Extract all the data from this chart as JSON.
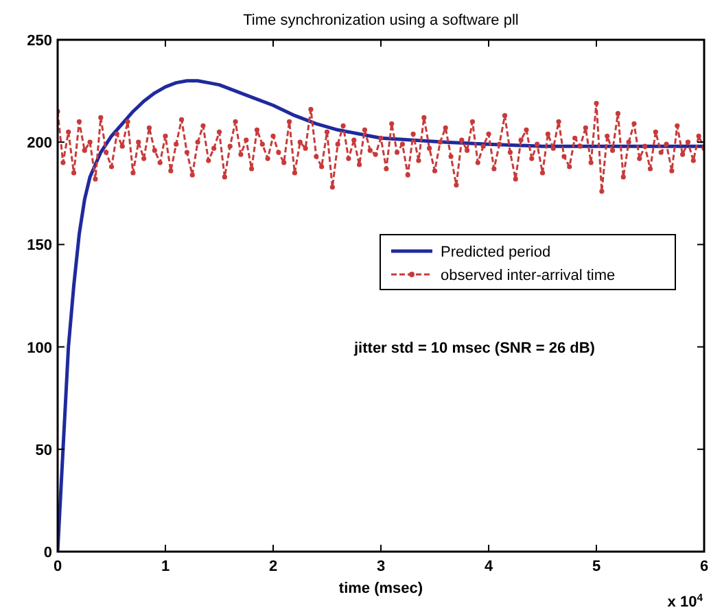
{
  "chart_data": {
    "type": "line",
    "title": "Time synchronization using a software pll",
    "xlabel": "time (msec)",
    "xlim": [
      0,
      6
    ],
    "ylim": [
      0,
      250
    ],
    "xticks": [
      0,
      1,
      2,
      3,
      4,
      5,
      6
    ],
    "yticks": [
      0,
      50,
      100,
      150,
      200,
      250
    ],
    "grid": false,
    "legend": "right",
    "annotations": [
      "jitter std = 10 msec (SNR = 26 dB)",
      "x 10$^{4}$"
    ],
    "series": [
      {
        "name": "Predicted period",
        "color": "#1f2a9c",
        "marker": "none",
        "line_style": "solid",
        "x": [
          0,
          0.02,
          0.05,
          0.08,
          0.1,
          0.15,
          0.2,
          0.25,
          0.3,
          0.4,
          0.5,
          0.6,
          0.7,
          0.8,
          0.9,
          1.0,
          1.1,
          1.2,
          1.3,
          1.4,
          1.5,
          1.6,
          1.8,
          2.0,
          2.2,
          2.4,
          2.6,
          2.8,
          3.0,
          3.3,
          3.6,
          4.0,
          4.5,
          5.0,
          5.5,
          6.0
        ],
        "values": [
          0,
          20,
          50,
          80,
          100,
          130,
          155,
          172,
          183,
          195,
          203,
          209,
          215,
          220,
          224,
          227,
          229,
          230,
          230,
          229,
          228,
          226,
          222,
          218,
          213,
          209,
          206,
          204,
          202,
          201,
          200,
          199,
          198,
          198,
          198,
          198
        ]
      },
      {
        "name": "observed inter-arrival time",
        "color": "#c83a3a",
        "marker": "circle",
        "line_style": "dashed",
        "x": [
          0,
          0.05,
          0.1,
          0.15,
          0.2,
          0.25,
          0.3,
          0.35,
          0.4,
          0.45,
          0.5,
          0.55,
          0.6,
          0.65,
          0.7,
          0.75,
          0.8,
          0.85,
          0.9,
          0.95,
          1.0,
          1.05,
          1.1,
          1.15,
          1.2,
          1.25,
          1.3,
          1.35,
          1.4,
          1.45,
          1.5,
          1.55,
          1.6,
          1.65,
          1.7,
          1.75,
          1.8,
          1.85,
          1.9,
          1.95,
          2.0,
          2.05,
          2.1,
          2.15,
          2.2,
          2.25,
          2.3,
          2.35,
          2.4,
          2.45,
          2.5,
          2.55,
          2.6,
          2.65,
          2.7,
          2.75,
          2.8,
          2.85,
          2.9,
          2.95,
          3.0,
          3.05,
          3.1,
          3.15,
          3.2,
          3.25,
          3.3,
          3.35,
          3.4,
          3.45,
          3.5,
          3.55,
          3.6,
          3.65,
          3.7,
          3.75,
          3.8,
          3.85,
          3.9,
          3.95,
          4.0,
          4.05,
          4.1,
          4.15,
          4.2,
          4.25,
          4.3,
          4.35,
          4.4,
          4.45,
          4.5,
          4.55,
          4.6,
          4.65,
          4.7,
          4.75,
          4.8,
          4.85,
          4.9,
          4.95,
          5.0,
          5.05,
          5.1,
          5.15,
          5.2,
          5.25,
          5.3,
          5.35,
          5.4,
          5.45,
          5.5,
          5.55,
          5.6,
          5.65,
          5.7,
          5.75,
          5.8,
          5.85,
          5.9,
          5.95,
          6.0
        ],
        "values": [
          215,
          190,
          205,
          185,
          210,
          196,
          200,
          182,
          212,
          195,
          188,
          204,
          198,
          210,
          185,
          200,
          192,
          207,
          196,
          190,
          203,
          186,
          199,
          211,
          195,
          184,
          200,
          208,
          191,
          197,
          205,
          183,
          198,
          210,
          194,
          201,
          187,
          206,
          199,
          192,
          203,
          195,
          190,
          210,
          185,
          200,
          197,
          216,
          193,
          188,
          205,
          178,
          199,
          208,
          192,
          201,
          189,
          206,
          196,
          194,
          202,
          187,
          209,
          195,
          199,
          184,
          204,
          191,
          212,
          197,
          186,
          200,
          207,
          193,
          179,
          201,
          196,
          210,
          190,
          198,
          204,
          187,
          199,
          213,
          195,
          182,
          201,
          206,
          192,
          199,
          185,
          204,
          197,
          210,
          193,
          188,
          202,
          198,
          207,
          190,
          219,
          176,
          203,
          196,
          214,
          183,
          200,
          209,
          192,
          198,
          187,
          205,
          195,
          199,
          186,
          208,
          194,
          200,
          191,
          203,
          197
        ]
      }
    ]
  }
}
